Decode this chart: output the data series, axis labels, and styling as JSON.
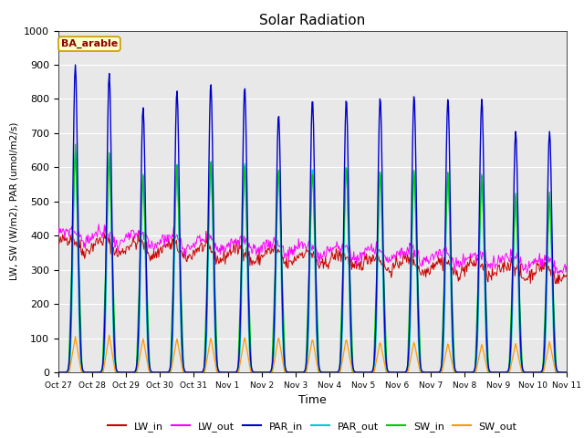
{
  "title": "Solar Radiation",
  "xlabel": "Time",
  "ylabel": "LW, SW (W/m2), PAR (umol/m2/s)",
  "annotation": "BA_arable",
  "ylim": [
    0,
    1000
  ],
  "series_colors": {
    "LW_in": "#cc0000",
    "LW_out": "#ff00ff",
    "PAR_in": "#0000cc",
    "PAR_out": "#00cccc",
    "SW_in": "#00cc00",
    "SW_out": "#ff9900"
  },
  "xtick_labels": [
    "Oct 27",
    "Oct 28",
    "Oct 29",
    "Oct 30",
    "Oct 31",
    "Nov 1",
    "Nov 2",
    "Nov 3",
    "Nov 4",
    "Nov 5",
    "Nov 6",
    "Nov 7",
    "Nov 8",
    "Nov 9",
    "Nov 10",
    "Nov 11"
  ],
  "n_days": 15,
  "plot_bg_color": "#e8e8e8"
}
